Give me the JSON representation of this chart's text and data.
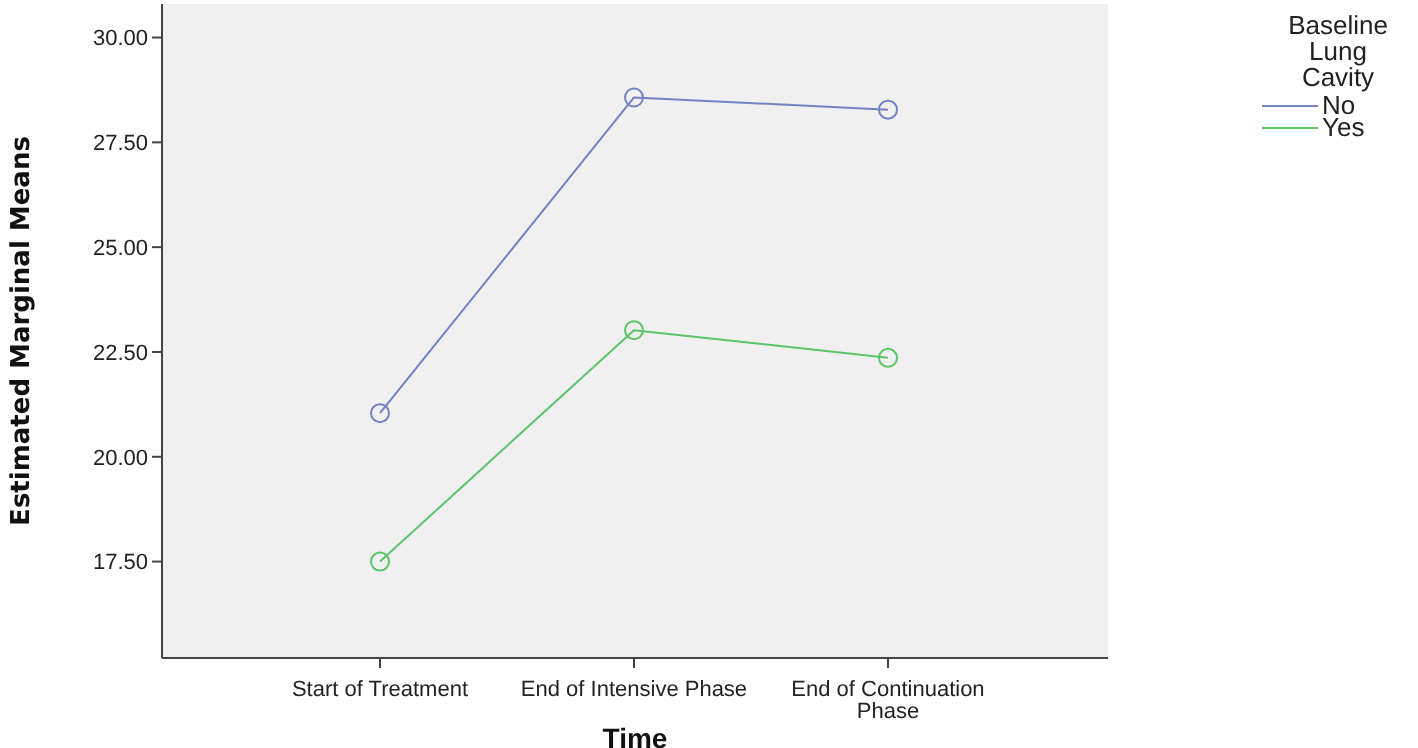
{
  "chart_data": {
    "type": "line",
    "xlabel": "Time",
    "ylabel": "Estimated Marginal Means",
    "legend_title": "Baseline Lung Cavity",
    "categories": [
      "Start of Treatment",
      "End of Intensive Phase",
      "End of Continuation Phase"
    ],
    "series": [
      {
        "name": "No",
        "color": "#7282c4",
        "values": [
          21.04,
          28.57,
          28.28
        ]
      },
      {
        "name": "Yes",
        "color": "#5cc46a",
        "values": [
          17.5,
          23.02,
          22.36
        ]
      }
    ],
    "ylim": [
      15.2,
      30.8
    ],
    "yticks": [
      {
        "value": 17.5,
        "label": "17.50"
      },
      {
        "value": 20,
        "label": "20.00"
      },
      {
        "value": 22.5,
        "label": "22.50"
      },
      {
        "value": 25,
        "label": "25.00"
      },
      {
        "value": 27.5,
        "label": "27.50"
      },
      {
        "value": 30,
        "label": "30.00"
      }
    ],
    "grid": false,
    "legend": "top right",
    "marker": "circle",
    "line_style": "solid"
  }
}
